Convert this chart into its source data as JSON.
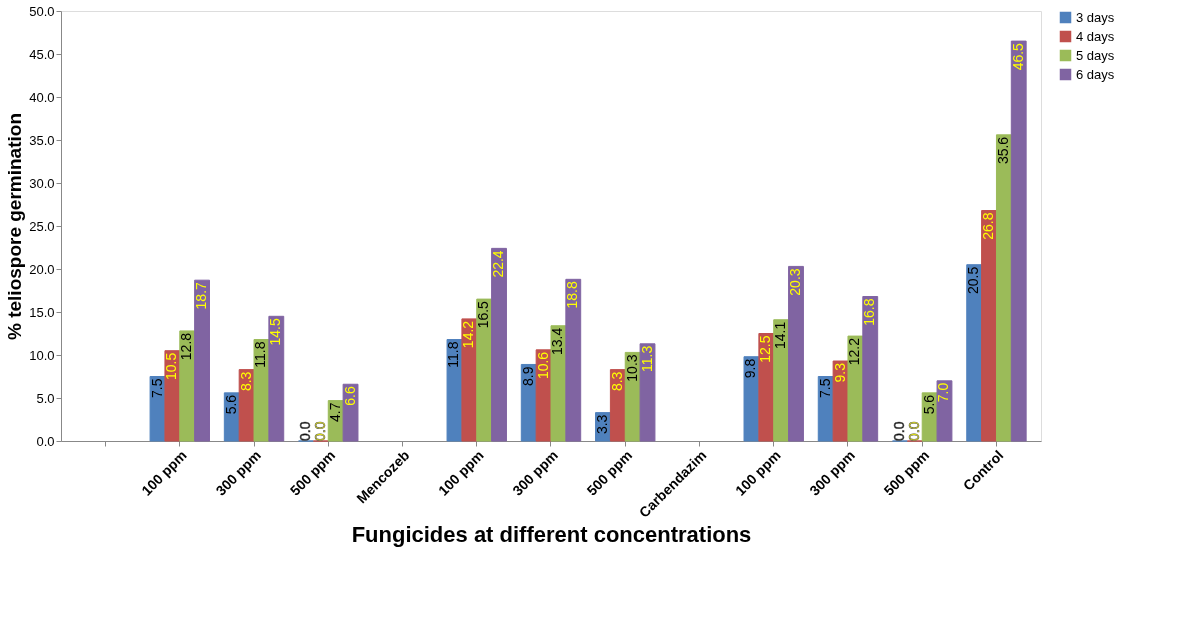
{
  "chart_data": {
    "type": "bar",
    "xlabel": "Fungicides at different concentrations",
    "ylabel": "% teliospore germination",
    "categories": [
      null,
      "100 ppm",
      "300 ppm",
      "500 ppm",
      "Mencozeb",
      "100 ppm",
      "300 ppm",
      "500 ppm",
      "Carbendazim",
      "100 ppm",
      "300 ppm",
      "500 ppm",
      "Control"
    ],
    "series": [
      {
        "name": "3 days",
        "color": "#4f81bd",
        "values": [
          null,
          7.5,
          5.6,
          0.0,
          null,
          11.8,
          8.9,
          3.3,
          null,
          9.8,
          7.5,
          0.0,
          20.5
        ],
        "value_labels": [
          null,
          "7.5",
          "5.6",
          "0.0",
          null,
          "11.8",
          "8.9",
          "3.3",
          null,
          "9.8",
          "7.5",
          "0.0",
          "20.5"
        ]
      },
      {
        "name": "4 days",
        "color": "#c0504d",
        "values": [
          null,
          10.5,
          8.3,
          0.0,
          null,
          14.2,
          10.6,
          8.3,
          null,
          12.5,
          9.3,
          0.0,
          26.8
        ],
        "value_labels": [
          null,
          "10.5",
          "8.3",
          "0.0",
          null,
          "14.2",
          "10.6",
          "8.3",
          null,
          "12.5",
          "9.3",
          "0.0",
          "26.8"
        ]
      },
      {
        "name": "5 days",
        "color": "#9bbb59",
        "values": [
          null,
          12.8,
          11.8,
          4.7,
          null,
          16.5,
          13.4,
          10.3,
          null,
          14.1,
          12.2,
          5.6,
          35.6
        ],
        "value_labels": [
          null,
          "12.8",
          "11.8",
          "4.7",
          null,
          "16.5",
          "13.4",
          "10.3",
          null,
          "14.1",
          "12.2",
          "5.6",
          "35.6"
        ]
      },
      {
        "name": "6 days",
        "color": "#8064a2",
        "values": [
          null,
          18.7,
          14.5,
          6.6,
          null,
          22.4,
          18.8,
          11.3,
          null,
          20.3,
          16.8,
          7.0,
          46.5
        ],
        "value_labels": [
          null,
          "18.7",
          "14.5",
          "6.6",
          null,
          "22.4",
          "18.8",
          "11.3",
          null,
          "20.3",
          "16.8",
          "7.0",
          "46.5"
        ]
      }
    ],
    "ylim": [
      0,
      50
    ],
    "yticks": [
      {
        "value": 0,
        "label": "0.0"
      },
      {
        "value": 5,
        "label": "5.0"
      },
      {
        "value": 10,
        "label": "10.0"
      },
      {
        "value": 15,
        "label": "15.0"
      },
      {
        "value": 20,
        "label": "20.0"
      },
      {
        "value": 25,
        "label": "25.0"
      },
      {
        "value": 30,
        "label": "30.0"
      },
      {
        "value": 35,
        "label": "35.0"
      },
      {
        "value": 40,
        "label": "40.0"
      },
      {
        "value": 45,
        "label": "45.0"
      },
      {
        "value": 50,
        "label": "50.0"
      }
    ],
    "legend": "right",
    "grid": false
  }
}
